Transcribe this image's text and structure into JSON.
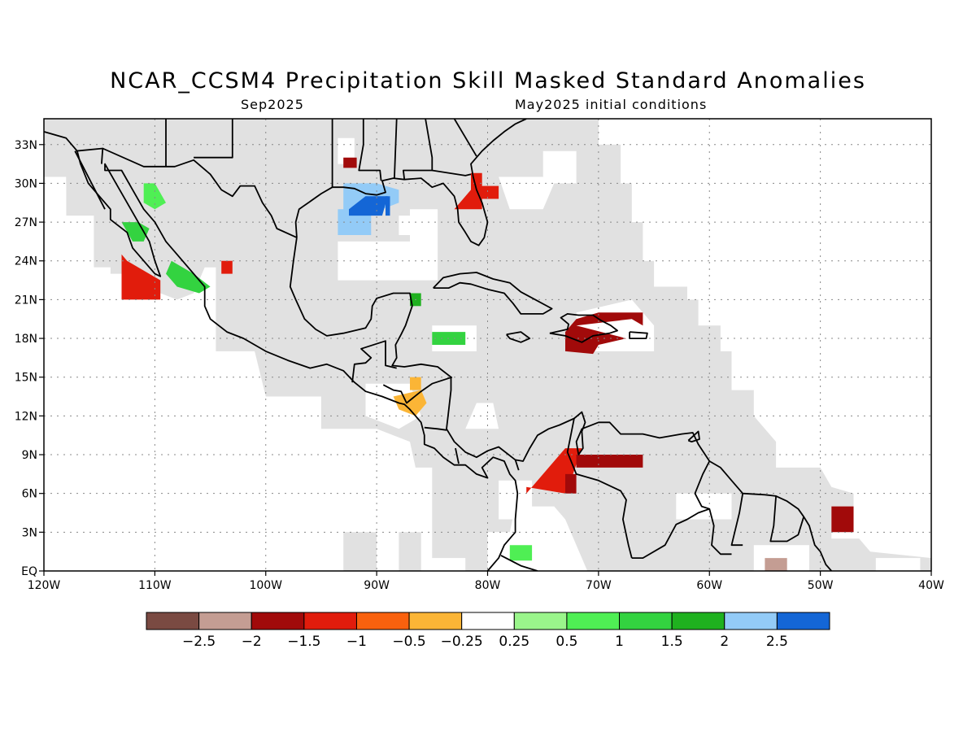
{
  "header": {
    "title": "NCAR_CCSM4 Precipitation Skill Masked Standard Anomalies",
    "valid_month": "Sep2025",
    "init": "May2025 initial conditions"
  },
  "map": {
    "lon_range": [
      -120,
      -40
    ],
    "lat_range": [
      0,
      35
    ],
    "lon_ticks": [
      {
        "value": -120,
        "label": "120W"
      },
      {
        "value": -110,
        "label": "110W"
      },
      {
        "value": -100,
        "label": "100W"
      },
      {
        "value": -90,
        "label": "90W"
      },
      {
        "value": -80,
        "label": "80W"
      },
      {
        "value": -70,
        "label": "70W"
      },
      {
        "value": -60,
        "label": "60W"
      },
      {
        "value": -50,
        "label": "50W"
      },
      {
        "value": -40,
        "label": "40W"
      }
    ],
    "lat_ticks": [
      {
        "value": 0,
        "label": "EQ"
      },
      {
        "value": 3,
        "label": "3N"
      },
      {
        "value": 6,
        "label": "6N"
      },
      {
        "value": 9,
        "label": "9N"
      },
      {
        "value": 12,
        "label": "12N"
      },
      {
        "value": 15,
        "label": "15N"
      },
      {
        "value": 18,
        "label": "18N"
      },
      {
        "value": 21,
        "label": "21N"
      },
      {
        "value": 24,
        "label": "24N"
      },
      {
        "value": 27,
        "label": "27N"
      },
      {
        "value": 30,
        "label": "30N"
      },
      {
        "value": 33,
        "label": "33N"
      }
    ],
    "mask_color": "#e1e1e1",
    "coast_color": "#000000",
    "grid": true
  },
  "colorbar": {
    "colors": [
      "#7a4a42",
      "#c49d93",
      "#a10a0a",
      "#e11c0c",
      "#f9610e",
      "#fbb536",
      "#ffffff",
      "#9af58b",
      "#4fef54",
      "#33d340",
      "#1fb11f",
      "#93cbf7",
      "#1466d6"
    ],
    "labels": [
      "-2.5",
      "-2",
      "-1.5",
      "-1",
      "-0.5",
      "-0.25",
      "0.25",
      "0.5",
      "1",
      "1.5",
      "2",
      "2.5"
    ]
  },
  "anomaly_patches": [
    {
      "region": "northern Gulf coast",
      "category": "2"
    },
    {
      "region": "Louisiana coast",
      "category": "2.5"
    },
    {
      "region": "Mississippi valley",
      "category": "-1.5"
    },
    {
      "region": "Florida",
      "category": "-1"
    },
    {
      "region": "Baja California",
      "category": "-1"
    },
    {
      "region": "Gulf of California",
      "category": "0.5"
    },
    {
      "region": "Sinaloa",
      "category": "1"
    },
    {
      "region": "off Jalisco",
      "category": "-1"
    },
    {
      "region": "Yucatan",
      "category": "1.5"
    },
    {
      "region": "western Caribbean",
      "category": "1"
    },
    {
      "region": "Honduras",
      "category": "-0.25"
    },
    {
      "region": "Hispaniola",
      "category": "-1.5"
    },
    {
      "region": "northern Colombia",
      "category": "-1"
    },
    {
      "region": "Venezuela coast",
      "category": "-1.5"
    },
    {
      "region": "western Atlantic 4N",
      "category": "-1.5"
    },
    {
      "region": "Ecuador coast",
      "category": "0.5"
    },
    {
      "region": "French Guiana coast",
      "category": "-2"
    }
  ]
}
